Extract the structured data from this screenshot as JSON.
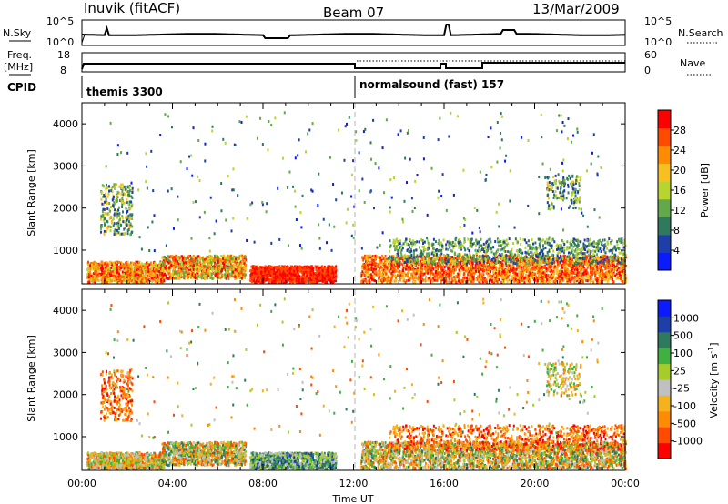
{
  "header": {
    "station": "Inuvik (fitACF)",
    "beam": "Beam 07",
    "date": "13/Mar/2009"
  },
  "sky_panel": {
    "left_label": "N.Sky",
    "left_ticks": [
      "10^5",
      "10^0"
    ],
    "right_label": "N.Search",
    "right_ticks": [
      "10^5",
      "10^0"
    ]
  },
  "freq_panel": {
    "left_label_line1": "Freq.",
    "left_label_line2": "[MHz]",
    "left_ticks": [
      "18",
      "8"
    ],
    "right_label": "Nave",
    "right_ticks": [
      "60",
      "0"
    ]
  },
  "cpid": {
    "label": "CPID",
    "segments": [
      {
        "name": "themis 3300",
        "start_hour": 0,
        "end_hour": 12
      },
      {
        "name": "normalsound (fast) 157",
        "start_hour": 12,
        "end_hour": 24
      }
    ]
  },
  "colors": {
    "power_scale": [
      "#0a1cff",
      "#1f3fa8",
      "#2f7a5e",
      "#63a84a",
      "#b7d42f",
      "#f5c020",
      "#ff8c00",
      "#ff4a00",
      "#ff0000"
    ],
    "velocity_scale": [
      "#ff0000",
      "#ff4a00",
      "#ff8c00",
      "#f5b21c",
      "#c0c0c0",
      "#a6cc2a",
      "#40b040",
      "#2f7a5e",
      "#1f3fa8",
      "#0a1cff"
    ],
    "grid_dash": "#b4b4b4"
  },
  "chart_data": [
    {
      "type": "heatmap",
      "panel": "power",
      "ylabel": "Slant Range [km]",
      "xlabel": "",
      "yticks": [
        1000,
        2000,
        3000,
        4000
      ],
      "ylim": [
        200,
        4500
      ],
      "xlim_hours": [
        0,
        24
      ],
      "colorbar_label": "Power [dB]",
      "colorbar_ticks": [
        "4",
        "8",
        "12",
        "16",
        "20",
        "24",
        "28"
      ],
      "colorbar_range": [
        0,
        32
      ]
    },
    {
      "type": "heatmap",
      "panel": "velocity",
      "ylabel": "Slant Range [km]",
      "xlabel": "Time UT",
      "xtick_labels": [
        "00:00",
        "04:00",
        "08:00",
        "12:00",
        "16:00",
        "20:00",
        "00:00"
      ],
      "yticks": [
        1000,
        2000,
        3000,
        4000
      ],
      "ylim": [
        200,
        4500
      ],
      "xlim_hours": [
        0,
        24
      ],
      "colorbar_label": "Velocity [m s",
      "colorbar_label_exp": "-1",
      "colorbar_label_close": "]",
      "colorbar_ticks": [
        "-1000",
        "-500",
        "-100",
        "-25",
        "25",
        "100",
        "500",
        "1000"
      ]
    }
  ]
}
